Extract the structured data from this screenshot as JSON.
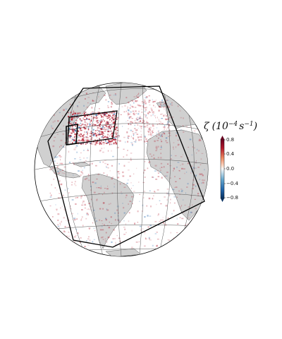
{
  "colorbar": {
    "symbol": "ζ",
    "unit_base": "(10",
    "unit_exp1": "−4",
    "unit_mid": "s",
    "unit_exp2": "−1",
    "unit_close": ")",
    "ticks": [
      "0.8",
      "0.4",
      "0.0",
      "−0.4",
      "−0.8"
    ],
    "vmin": -0.8,
    "vmax": 0.8,
    "colors": {
      "positive": "#b2182b",
      "neutral": "#f7f7f7",
      "negative": "#2166ac"
    }
  },
  "map": {
    "projection": "orthographic",
    "ocean_color": "#ffffff",
    "land_color": "#d0d0d0",
    "graticule_color": "#555555",
    "regions": [
      "outer-domain",
      "middle-domain",
      "inner-domain"
    ]
  }
}
